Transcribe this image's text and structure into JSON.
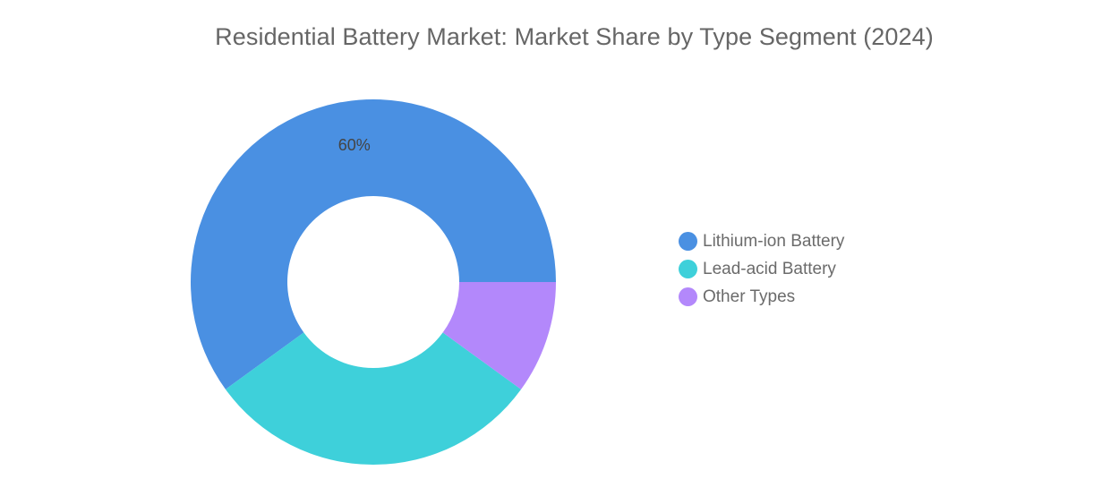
{
  "chart_data": {
    "type": "pie",
    "variant": "donut",
    "title": "Residential Battery Market: Market Share by Type Segment (2024)",
    "categories": [
      "Lithium-ion Battery",
      "Lead-acid Battery",
      "Other Types"
    ],
    "values": [
      60,
      30,
      10
    ],
    "unit": "%",
    "colors": [
      "#4a90e2",
      "#3ed0da",
      "#b388fb"
    ],
    "data_labels": [
      "60%",
      "",
      ""
    ],
    "legend_position": "right"
  }
}
